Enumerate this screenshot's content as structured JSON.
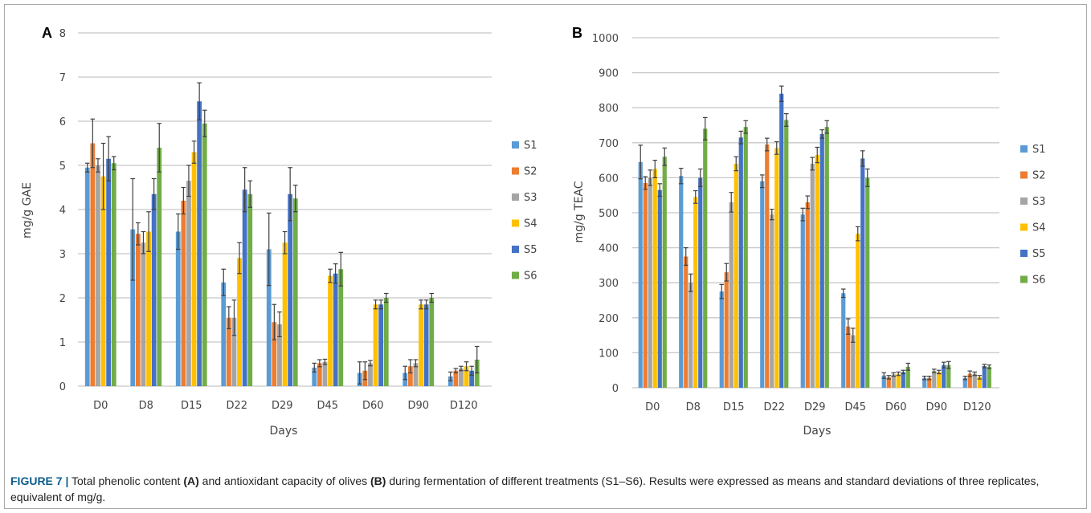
{
  "colors": {
    "S1": "#5b9bd5",
    "S2": "#ed7d31",
    "S3": "#a5a5a5",
    "S4": "#ffc000",
    "S5": "#4472c4",
    "S6": "#70ad47",
    "grid": "#c8c8c8",
    "error_bar": "#404040"
  },
  "caption": {
    "figure_label": "FIGURE 7 |",
    "part1": " Total phenolic content ",
    "label_a": "(A)",
    "part2": " and antioxidant capacity of olives ",
    "label_b": "(B)",
    "part3": " during fermentation of different treatments (S1–S6). Results were expressed as means and standard deviations of three replicates, equivalent of mg/g."
  },
  "chart_data": [
    {
      "panel": "A",
      "type": "bar",
      "xlabel": "Days",
      "ylabel": "mg/g GAE",
      "ylim": [
        0,
        8
      ],
      "yticks": [
        0,
        1,
        2,
        3,
        4,
        5,
        6,
        7,
        8
      ],
      "grid": true,
      "legend": "right",
      "categories": [
        "D0",
        "D8",
        "D15",
        "D22",
        "D29",
        "D45",
        "D60",
        "D90",
        "D120"
      ],
      "series": [
        {
          "name": "S1",
          "values": [
            4.95,
            3.55,
            3.5,
            2.35,
            3.1,
            0.42,
            0.3,
            0.3,
            0.22
          ],
          "errors": [
            0.1,
            1.15,
            0.4,
            0.3,
            0.82,
            0.1,
            0.25,
            0.15,
            0.1
          ]
        },
        {
          "name": "S2",
          "values": [
            5.5,
            3.45,
            4.2,
            1.55,
            1.45,
            0.52,
            0.35,
            0.45,
            0.35
          ],
          "errors": [
            0.55,
            0.25,
            0.3,
            0.25,
            0.4,
            0.08,
            0.2,
            0.15,
            0.05
          ]
        },
        {
          "name": "S3",
          "values": [
            5.0,
            3.25,
            4.65,
            1.55,
            1.4,
            0.55,
            0.52,
            0.52,
            0.4
          ],
          "errors": [
            0.15,
            0.25,
            0.35,
            0.4,
            0.28,
            0.06,
            0.06,
            0.08,
            0.05
          ]
        },
        {
          "name": "S4",
          "values": [
            4.75,
            3.5,
            5.3,
            2.9,
            3.25,
            2.5,
            1.85,
            1.85,
            0.45
          ],
          "errors": [
            0.75,
            0.45,
            0.25,
            0.35,
            0.25,
            0.15,
            0.1,
            0.1,
            0.1
          ]
        },
        {
          "name": "S5",
          "values": [
            5.15,
            4.35,
            6.45,
            4.45,
            4.35,
            2.55,
            1.85,
            1.85,
            0.35
          ],
          "errors": [
            0.5,
            0.35,
            0.42,
            0.5,
            0.6,
            0.22,
            0.1,
            0.1,
            0.1
          ]
        },
        {
          "name": "S6",
          "values": [
            5.05,
            5.4,
            5.95,
            4.35,
            4.25,
            2.65,
            2.0,
            2.0,
            0.6
          ],
          "errors": [
            0.15,
            0.55,
            0.3,
            0.3,
            0.3,
            0.38,
            0.1,
            0.1,
            0.3
          ]
        }
      ]
    },
    {
      "panel": "B",
      "type": "bar",
      "xlabel": "Days",
      "ylabel": "mg/g TEAC",
      "ylim": [
        0,
        1000
      ],
      "yticks": [
        0,
        100,
        200,
        300,
        400,
        500,
        600,
        700,
        800,
        900,
        1000
      ],
      "grid": true,
      "legend": "right",
      "categories": [
        "D0",
        "D8",
        "D15",
        "D22",
        "D29",
        "D45",
        "D60",
        "D90",
        "D120"
      ],
      "series": [
        {
          "name": "S1",
          "values": [
            645,
            605,
            275,
            590,
            495,
            270,
            35,
            28,
            28
          ],
          "errors": [
            48,
            22,
            20,
            18,
            18,
            12,
            8,
            5,
            5
          ]
        },
        {
          "name": "S2",
          "values": [
            585,
            375,
            330,
            695,
            530,
            175,
            30,
            28,
            40
          ],
          "errors": [
            18,
            25,
            25,
            18,
            18,
            22,
            5,
            5,
            8
          ]
        },
        {
          "name": "S3",
          "values": [
            600,
            300,
            530,
            495,
            640,
            150,
            38,
            48,
            40
          ],
          "errors": [
            22,
            25,
            28,
            15,
            18,
            20,
            5,
            5,
            5
          ]
        },
        {
          "name": "S4",
          "values": [
            625,
            545,
            640,
            685,
            665,
            440,
            40,
            45,
            30
          ],
          "errors": [
            25,
            18,
            20,
            18,
            22,
            20,
            5,
            5,
            5
          ]
        },
        {
          "name": "S5",
          "values": [
            565,
            600,
            715,
            840,
            725,
            655,
            45,
            65,
            62
          ],
          "errors": [
            18,
            25,
            18,
            22,
            12,
            22,
            5,
            8,
            5
          ]
        },
        {
          "name": "S6",
          "values": [
            660,
            740,
            745,
            765,
            745,
            600,
            60,
            65,
            60
          ],
          "errors": [
            25,
            32,
            18,
            18,
            18,
            25,
            10,
            10,
            5
          ]
        }
      ]
    }
  ]
}
